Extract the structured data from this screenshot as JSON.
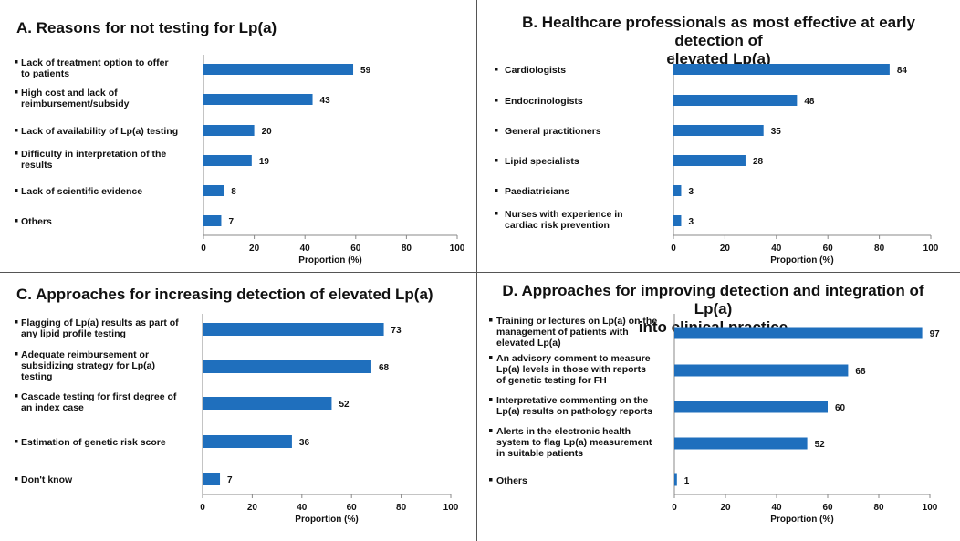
{
  "colors": {
    "bar": "#1f6fbd",
    "axis": "#888888",
    "divider": "#555555"
  },
  "chart_data": [
    {
      "type": "bar",
      "orientation": "horizontal",
      "title": "A. Reasons for not testing for Lp(a)",
      "categories": [
        [
          "Lack of treatment option to offer",
          "to patients"
        ],
        [
          "High cost and lack of",
          "reimbursement/subsidy"
        ],
        [
          "Lack of availability of Lp(a) testing"
        ],
        [
          "Difficulty in interpretation of the",
          "results"
        ],
        [
          "Lack of scientific evidence"
        ],
        [
          "Others"
        ]
      ],
      "values": [
        59,
        43,
        20,
        19,
        8,
        7
      ],
      "xlabel": "Proportion (%)",
      "xlim": [
        0,
        100
      ],
      "xticks": [
        0,
        20,
        40,
        60,
        80,
        100
      ]
    },
    {
      "type": "bar",
      "orientation": "horizontal",
      "title": "B. Healthcare professionals as most effective at early detection of elevated Lp(a)",
      "title_lines": [
        "B. Healthcare professionals as most effective at early detection of",
        "elevated Lp(a)"
      ],
      "categories": [
        [
          "Cardiologists"
        ],
        [
          "Endocrinologists"
        ],
        [
          "General practitioners"
        ],
        [
          "Lipid specialists"
        ],
        [
          "Paediatricians"
        ],
        [
          "Nurses with experience in",
          "cardiac risk prevention"
        ]
      ],
      "values": [
        84,
        48,
        35,
        28,
        3,
        3
      ],
      "xlabel": "Proportion (%)",
      "xlim": [
        0,
        100
      ],
      "xticks": [
        0,
        20,
        40,
        60,
        80,
        100
      ]
    },
    {
      "type": "bar",
      "orientation": "horizontal",
      "title": "C. Approaches for increasing detection of elevated Lp(a)",
      "categories": [
        [
          "Flagging of Lp(a) results as part of",
          "any lipid profile testing"
        ],
        [
          "Adequate reimbursement or",
          "subsidizing strategy for Lp(a)",
          "testing"
        ],
        [
          "Cascade testing for first degree of",
          "an index case"
        ],
        [
          "Estimation of genetic risk score"
        ],
        [
          "Don't know"
        ]
      ],
      "values": [
        73,
        68,
        52,
        36,
        7
      ],
      "xlabel": "Proportion (%)",
      "xlim": [
        0,
        100
      ],
      "xticks": [
        0,
        20,
        40,
        60,
        80,
        100
      ]
    },
    {
      "type": "bar",
      "orientation": "horizontal",
      "title": "D. Approaches for improving detection and integration of Lp(a) into clinical practice",
      "title_lines": [
        "D. Approaches for improving detection and integration  of Lp(a)",
        "into clinical practice"
      ],
      "categories": [
        [
          "Training or lectures on Lp(a) on the",
          "management of patients with",
          "elevated Lp(a)"
        ],
        [
          "An advisory comment to measure",
          "Lp(a) levels in those with reports",
          "of genetic testing for FH"
        ],
        [
          "Interpretative commenting on the",
          "Lp(a) results on pathology reports"
        ],
        [
          "Alerts in the electronic health",
          "system to flag Lp(a) measurement",
          "in suitable patients"
        ],
        [
          "Others"
        ]
      ],
      "values": [
        97,
        68,
        60,
        52,
        1
      ],
      "xlabel": "Proportion (%)",
      "xlim": [
        0,
        100
      ],
      "xticks": [
        0,
        20,
        40,
        60,
        80,
        100
      ]
    }
  ]
}
